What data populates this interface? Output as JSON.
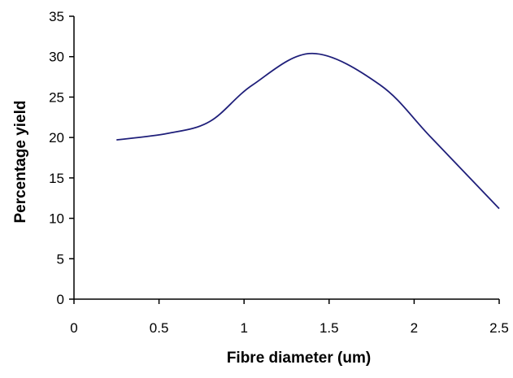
{
  "chart_data": {
    "type": "line",
    "title": "",
    "xlabel": "Fibre diameter (um)",
    "ylabel": "Percentage yield",
    "xlim": [
      0,
      2.5
    ],
    "ylim": [
      0,
      35
    ],
    "x_ticks": [
      0,
      0.5,
      1,
      1.5,
      2,
      2.5
    ],
    "x_tick_labels": [
      "0",
      "0.5",
      "1",
      "1.5",
      "2",
      "2.5"
    ],
    "y_ticks": [
      0,
      5,
      10,
      15,
      20,
      25,
      30,
      35
    ],
    "y_tick_labels": [
      "0",
      "5",
      "10",
      "15",
      "20",
      "25",
      "30",
      "35"
    ],
    "grid": false,
    "legend": "none",
    "smooth": true,
    "series": [
      {
        "color": "#1f1f7a",
        "x": [
          0.25,
          0.55,
          0.8,
          1.05,
          1.4,
          1.8,
          2.1,
          2.5
        ],
        "y": [
          19.7,
          20.5,
          22.0,
          26.5,
          30.4,
          26.5,
          20.0,
          11.2
        ]
      }
    ]
  }
}
